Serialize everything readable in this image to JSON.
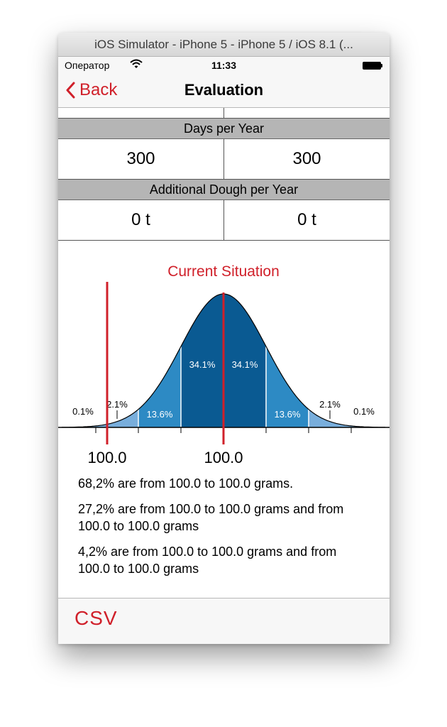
{
  "window": {
    "title": "iOS Simulator - iPhone 5 - iPhone 5 / iOS 8.1 (..."
  },
  "status": {
    "carrier": "Оператор",
    "time": "11:33"
  },
  "nav": {
    "back_label": "Back",
    "title": "Evaluation"
  },
  "sections": [
    {
      "header": "Days per Year",
      "left": "300",
      "right": "300"
    },
    {
      "header": "Additional Dough per Year",
      "left": "0 t",
      "right": "0 t"
    }
  ],
  "chart": {
    "title": "Current Situation",
    "band_labels": [
      "0.1%",
      "2.1%",
      "13.6%",
      "34.1%",
      "34.1%",
      "13.6%",
      "2.1%",
      "0.1%"
    ],
    "marker_left_label": "100.0",
    "marker_mean_label": "100.0",
    "colors": {
      "dark": "#0a5a92",
      "mid": "#2d8ac4",
      "light": "#78aedc",
      "accent": "#d0202a"
    }
  },
  "chart_data": {
    "type": "area",
    "title": "Current Situation",
    "x": [
      -3,
      -2,
      -1,
      0,
      1,
      2,
      3
    ],
    "bands": [
      {
        "range": [
          -4,
          -3
        ],
        "percent": 0.1
      },
      {
        "range": [
          -3,
          -2
        ],
        "percent": 2.1
      },
      {
        "range": [
          -2,
          -1
        ],
        "percent": 13.6
      },
      {
        "range": [
          -1,
          0
        ],
        "percent": 34.1
      },
      {
        "range": [
          0,
          1
        ],
        "percent": 34.1
      },
      {
        "range": [
          1,
          2
        ],
        "percent": 13.6
      },
      {
        "range": [
          2,
          3
        ],
        "percent": 2.1
      },
      {
        "range": [
          3,
          4
        ],
        "percent": 0.1
      }
    ],
    "markers": [
      {
        "label": "100.0",
        "sigma": -3
      },
      {
        "label": "100.0",
        "sigma": 0
      }
    ]
  },
  "stats": [
    "68,2% are from 100.0 to 100.0 grams.",
    "27,2% are from 100.0 to 100.0 grams and from 100.0 to 100.0 grams",
    "4,2% are from 100.0 to 100.0 grams and from 100.0 to 100.0 grams"
  ],
  "toolbar": {
    "logo_text": "CSV"
  }
}
